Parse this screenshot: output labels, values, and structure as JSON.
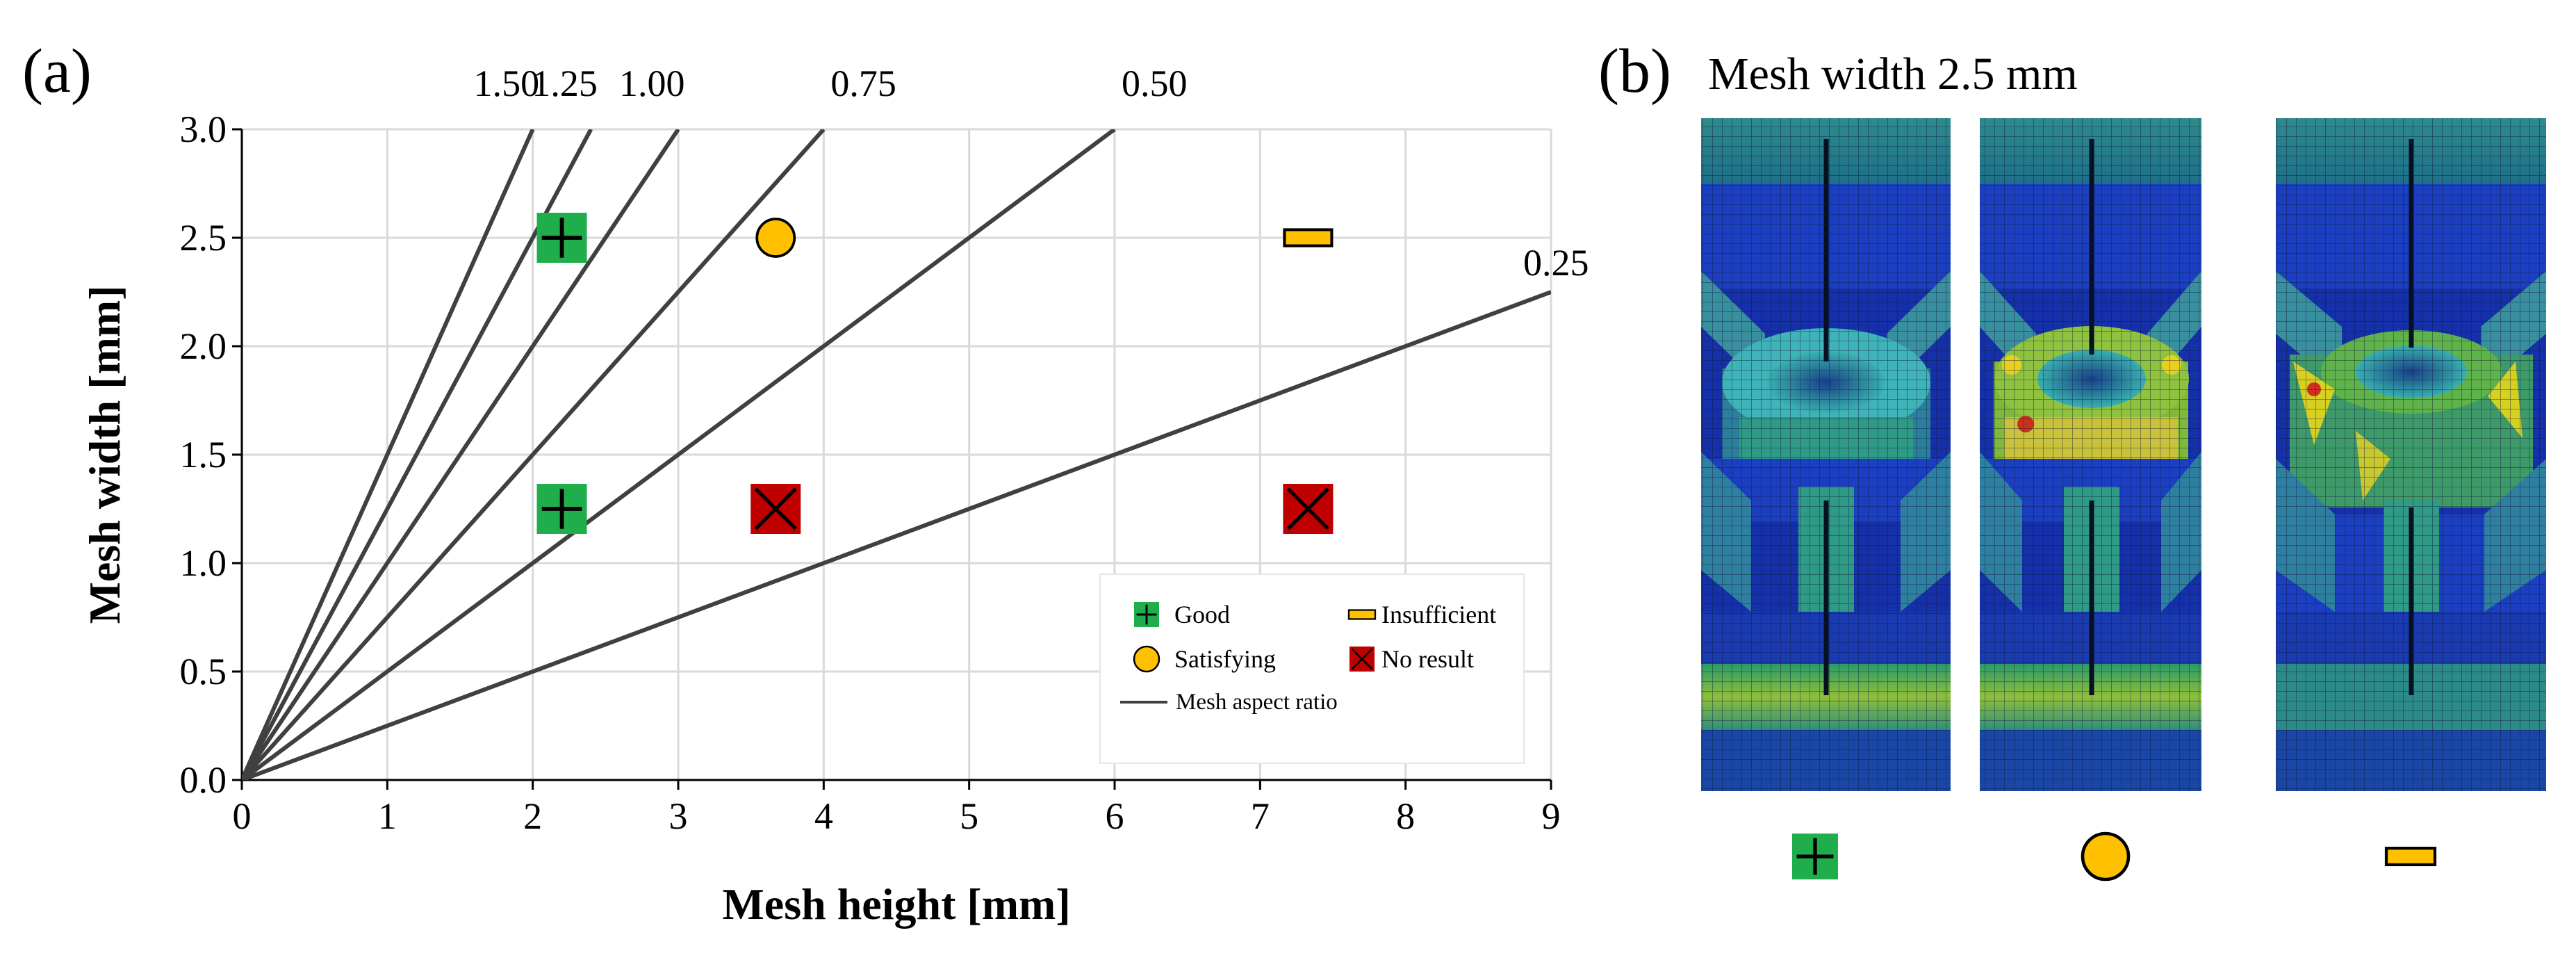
{
  "panel_a": {
    "label": "(a)",
    "chart_data": {
      "type": "scatter",
      "xlabel": "Mesh height [mm]",
      "ylabel": "Mesh width [mm]",
      "xlim": [
        0,
        9
      ],
      "ylim": [
        0,
        3
      ],
      "xticks": [
        0,
        1,
        2,
        3,
        4,
        5,
        6,
        7,
        8,
        9
      ],
      "yticks": [
        "0.0",
        "0.5",
        "1.0",
        "1.5",
        "2.0",
        "2.5",
        "3.0"
      ],
      "grid": true,
      "aspect_ratio_lines": [
        {
          "label": "1.50",
          "slope": 1.5
        },
        {
          "label": "1.25",
          "slope": 1.25
        },
        {
          "label": "1.00",
          "slope": 1.0
        },
        {
          "label": "0.75",
          "slope": 0.75
        },
        {
          "label": "0.50",
          "slope": 0.5
        },
        {
          "label": "0.25",
          "slope": 0.25
        }
      ],
      "series": [
        {
          "name": "Good",
          "marker": "square-plus",
          "color": "#1fae4b",
          "points": [
            [
              2.2,
              2.5
            ],
            [
              2.2,
              1.25
            ]
          ]
        },
        {
          "name": "Satisfying",
          "marker": "circle",
          "color": "#ffc000",
          "points": [
            [
              3.67,
              2.5
            ]
          ]
        },
        {
          "name": "Insufficient",
          "marker": "bar",
          "color": "#ffc000",
          "points": [
            [
              7.33,
              2.5
            ]
          ]
        },
        {
          "name": "No result",
          "marker": "square-x",
          "color": "#c00000",
          "points": [
            [
              3.67,
              1.25
            ],
            [
              7.33,
              1.25
            ]
          ]
        }
      ],
      "legend": {
        "placement": "bottom-right",
        "entries": [
          "Good",
          "Insufficient",
          "Satisfying",
          "No result",
          "Mesh aspect ratio"
        ]
      }
    }
  },
  "panel_b": {
    "label": "(b)",
    "title": "Mesh width 2.5 mm",
    "images": [
      {
        "name": "Good",
        "marker": "square-plus"
      },
      {
        "name": "Satisfying",
        "marker": "circle"
      },
      {
        "name": "Insufficient",
        "marker": "bar"
      }
    ]
  },
  "colors": {
    "good": "#1fae4b",
    "satisfying": "#ffc000",
    "insufficient": "#ffc000",
    "no_result": "#c00000",
    "ratio_line": "#404040",
    "grid": "#d9d9d9"
  }
}
